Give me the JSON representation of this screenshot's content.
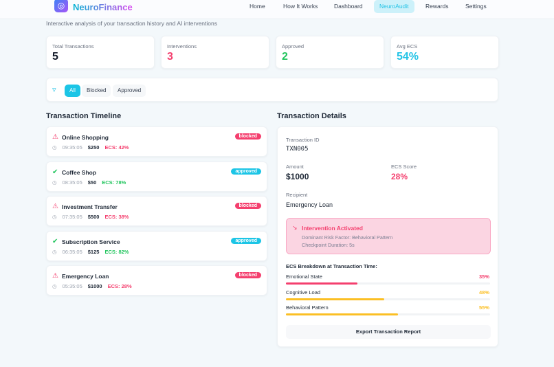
{
  "header": {
    "brand": "NeuroFinance",
    "nav": [
      "Home",
      "How It Works",
      "Dashboard",
      "NeuroAudit",
      "Rewards",
      "Settings"
    ],
    "active": "NeuroAudit"
  },
  "subtitle": "Interactive analysis of your transaction history and AI interventions",
  "stats": [
    {
      "label": "Total Transactions",
      "value": "5",
      "color": "#111827"
    },
    {
      "label": "Interventions",
      "value": "3",
      "color": "#f43f6e"
    },
    {
      "label": "Approved",
      "value": "2",
      "color": "#22c55e"
    },
    {
      "label": "Avg ECS",
      "value": "54%",
      "color": "#22c3e6"
    }
  ],
  "filters": [
    "All",
    "Blocked",
    "Approved"
  ],
  "timeline": {
    "title": "Transaction Timeline",
    "items": [
      {
        "name": "Online Shopping",
        "time": "09:35:05",
        "amount": "$250",
        "ecs": "ECS: 42%",
        "status": "blocked"
      },
      {
        "name": "Coffee Shop",
        "time": "08:35:05",
        "amount": "$50",
        "ecs": "ECS: 78%",
        "status": "approved"
      },
      {
        "name": "Investment Transfer",
        "time": "07:35:05",
        "amount": "$500",
        "ecs": "ECS: 38%",
        "status": "blocked"
      },
      {
        "name": "Subscription Service",
        "time": "06:35:05",
        "amount": "$125",
        "ecs": "ECS: 82%",
        "status": "approved"
      },
      {
        "name": "Emergency Loan",
        "time": "05:35:05",
        "amount": "$1000",
        "ecs": "ECS: 28%",
        "status": "blocked"
      }
    ]
  },
  "details": {
    "title": "Transaction Details",
    "id_label": "Transaction ID",
    "id": "TXN005",
    "amount_label": "Amount",
    "amount": "$1000",
    "ecs_label": "ECS Score",
    "ecs": "28%",
    "recipient_label": "Recipient",
    "recipient": "Emergency Loan",
    "intervention": {
      "title": "Intervention Activated",
      "factor": "Dominant Risk Factor: Behavioral Pattern",
      "duration": "Checkpoint Duration: 5s"
    },
    "breakdown_title": "ECS Breakdown at Transaction Time:",
    "breakdown": [
      {
        "label": "Emotional State",
        "pct": "35%",
        "value": 35,
        "color": "#f43f6e"
      },
      {
        "label": "Cognitive Load",
        "pct": "48%",
        "value": 48,
        "color": "#fbbf24"
      },
      {
        "label": "Behavioral Pattern",
        "pct": "55%",
        "value": 55,
        "color": "#fbbf24"
      }
    ],
    "export": "Export Transaction Report"
  }
}
